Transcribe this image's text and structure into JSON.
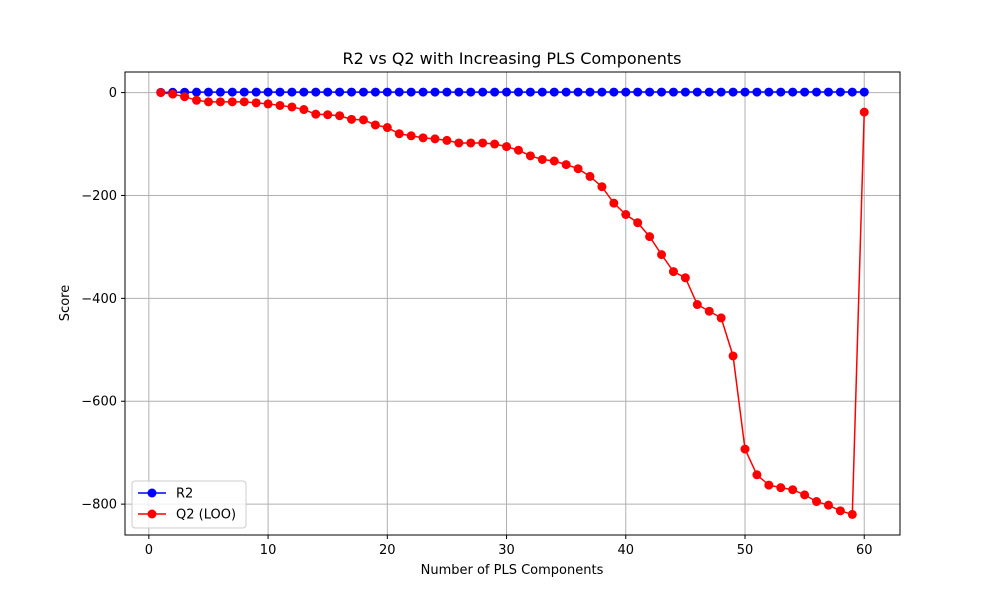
{
  "chart_data": {
    "type": "line",
    "title": "R2 vs Q2 with Increasing PLS Components",
    "xlabel": "Number of PLS Components",
    "ylabel": "Score",
    "xlim": [
      -2,
      63
    ],
    "ylim": [
      -860,
      40
    ],
    "xticks": [
      0,
      10,
      20,
      30,
      40,
      50,
      60
    ],
    "yticks": [
      -800,
      -600,
      -400,
      -200,
      0
    ],
    "grid": true,
    "legend_position": "lower-left",
    "x": [
      1,
      2,
      3,
      4,
      5,
      6,
      7,
      8,
      9,
      10,
      11,
      12,
      13,
      14,
      15,
      16,
      17,
      18,
      19,
      20,
      21,
      22,
      23,
      24,
      25,
      26,
      27,
      28,
      29,
      30,
      31,
      32,
      33,
      34,
      35,
      36,
      37,
      38,
      39,
      40,
      41,
      42,
      43,
      44,
      45,
      46,
      47,
      48,
      49,
      50,
      51,
      52,
      53,
      54,
      55,
      56,
      57,
      58,
      59,
      60
    ],
    "series": [
      {
        "name": "R2",
        "color": "#0000ff",
        "marker": "circle",
        "values": [
          0.5,
          0.6,
          0.7,
          0.8,
          0.8,
          0.85,
          0.9,
          0.9,
          0.9,
          0.92,
          0.93,
          0.94,
          0.95,
          0.95,
          0.96,
          0.96,
          0.97,
          0.97,
          0.97,
          0.98,
          0.98,
          0.98,
          0.98,
          0.98,
          0.99,
          0.99,
          0.99,
          0.99,
          0.99,
          0.99,
          0.99,
          0.99,
          0.99,
          0.99,
          0.99,
          1,
          1,
          1,
          1,
          1,
          1,
          1,
          1,
          1,
          1,
          1,
          1,
          1,
          1,
          1,
          1,
          1,
          1,
          1,
          1,
          1,
          1,
          1,
          1,
          1
        ]
      },
      {
        "name": "Q2 (LOO)",
        "color": "#ff0000",
        "marker": "circle",
        "values": [
          0,
          -3,
          -8,
          -15,
          -18,
          -18,
          -18,
          -18,
          -20,
          -22,
          -25,
          -28,
          -33,
          -42,
          -43,
          -45,
          -52,
          -53,
          -63,
          -68,
          -80,
          -84,
          -88,
          -90,
          -93,
          -98,
          -98,
          -98,
          -100,
          -105,
          -112,
          -123,
          -130,
          -133,
          -140,
          -148,
          -163,
          -183,
          -215,
          -237,
          -253,
          -280,
          -315,
          -348,
          -360,
          -412,
          -425,
          -438,
          -512,
          -693,
          -743,
          -763,
          -768,
          -772,
          -782,
          -795,
          -802,
          -813,
          -820,
          -38
        ]
      }
    ]
  }
}
